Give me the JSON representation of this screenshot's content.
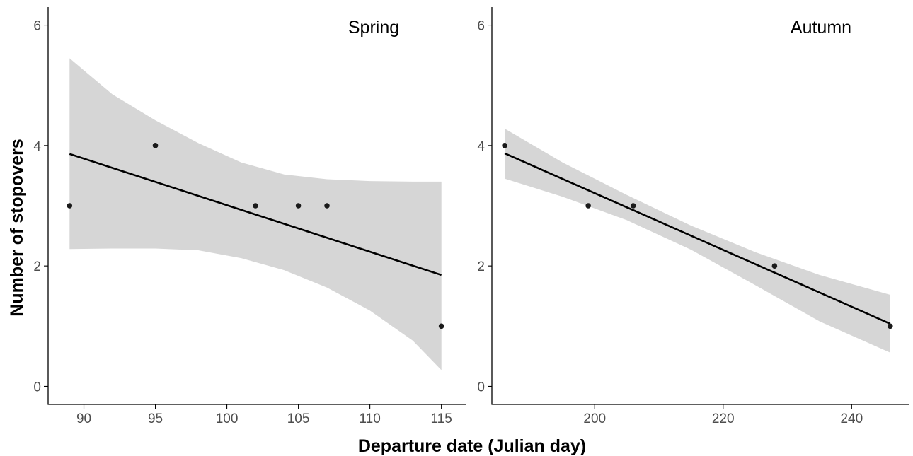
{
  "figure": {
    "xlabel": "Departure date (Julian day)",
    "ylabel": "Number of stopovers"
  },
  "colors": {
    "ribbon": "#d6d6d6",
    "line": "#000000",
    "point": "#1a1a1a",
    "axis": "#000000",
    "tick_text": "#4d4d4d"
  },
  "chart_data": [
    {
      "type": "scatter",
      "panel_label": "Spring",
      "xlim": [
        87.5,
        116.7
      ],
      "ylim": [
        -0.3,
        6.3
      ],
      "xticks": [
        90,
        95,
        100,
        105,
        110,
        115
      ],
      "yticks": [
        0,
        2,
        4,
        6
      ],
      "points": [
        {
          "x": 89,
          "y": 3
        },
        {
          "x": 95,
          "y": 4
        },
        {
          "x": 102,
          "y": 3
        },
        {
          "x": 105,
          "y": 3
        },
        {
          "x": 107,
          "y": 3
        },
        {
          "x": 115,
          "y": 1
        }
      ],
      "fit_line": [
        {
          "x": 89,
          "y": 3.86
        },
        {
          "x": 115,
          "y": 1.85
        }
      ],
      "ci_band": [
        {
          "x": 89,
          "lower": 2.28,
          "upper": 5.45
        },
        {
          "x": 92,
          "lower": 2.29,
          "upper": 4.85
        },
        {
          "x": 95,
          "lower": 2.29,
          "upper": 4.42
        },
        {
          "x": 98,
          "lower": 2.26,
          "upper": 4.04
        },
        {
          "x": 101,
          "lower": 2.13,
          "upper": 3.72
        },
        {
          "x": 104,
          "lower": 1.93,
          "upper": 3.52
        },
        {
          "x": 107,
          "lower": 1.64,
          "upper": 3.44
        },
        {
          "x": 110,
          "lower": 1.26,
          "upper": 3.41
        },
        {
          "x": 113,
          "lower": 0.76,
          "upper": 3.4
        },
        {
          "x": 115,
          "lower": 0.27,
          "upper": 3.4
        }
      ]
    },
    {
      "type": "scatter",
      "panel_label": "Autumn",
      "xlim": [
        184,
        249
      ],
      "ylim": [
        -0.3,
        6.3
      ],
      "xticks": [
        200,
        220,
        240
      ],
      "yticks": [
        0,
        2,
        4,
        6
      ],
      "points": [
        {
          "x": 186,
          "y": 4
        },
        {
          "x": 199,
          "y": 3
        },
        {
          "x": 206,
          "y": 3
        },
        {
          "x": 228,
          "y": 2
        },
        {
          "x": 246,
          "y": 1
        }
      ],
      "fit_line": [
        {
          "x": 186,
          "y": 3.87
        },
        {
          "x": 246,
          "y": 1.04
        }
      ],
      "ci_band": [
        {
          "x": 186,
          "lower": 3.45,
          "upper": 4.28
        },
        {
          "x": 195,
          "lower": 3.15,
          "upper": 3.72
        },
        {
          "x": 205,
          "lower": 2.76,
          "upper": 3.18
        },
        {
          "x": 215,
          "lower": 2.27,
          "upper": 2.67
        },
        {
          "x": 225,
          "lower": 1.68,
          "upper": 2.23
        },
        {
          "x": 235,
          "lower": 1.08,
          "upper": 1.85
        },
        {
          "x": 246,
          "lower": 0.56,
          "upper": 1.52
        }
      ]
    }
  ]
}
